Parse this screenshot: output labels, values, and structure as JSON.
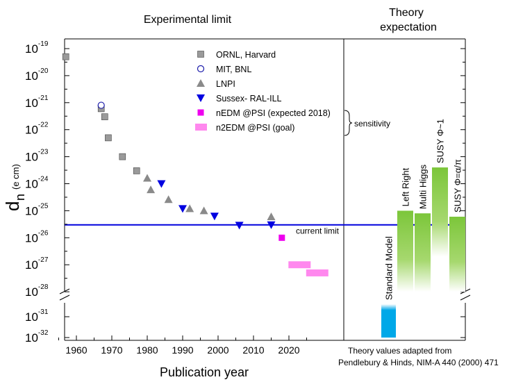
{
  "chart_data": {
    "type": "scatter",
    "title": "",
    "xlabel": "Publication year",
    "ylabel_main": "d",
    "ylabel_sub": "n",
    "ylabel_unit": "(e cm)",
    "xlim": [
      1950,
      2025
    ],
    "x_ticks": [
      "1960",
      "1970",
      "1980",
      "1990",
      "2000",
      "2010",
      "2020"
    ],
    "y_scale": "log (broken axis)",
    "y_ticks_upper": [
      {
        "base": "10",
        "exp": "-19"
      },
      {
        "base": "10",
        "exp": "-20"
      },
      {
        "base": "10",
        "exp": "-21"
      },
      {
        "base": "10",
        "exp": "-22"
      },
      {
        "base": "10",
        "exp": "-23"
      },
      {
        "base": "10",
        "exp": "-24"
      },
      {
        "base": "10",
        "exp": "-25"
      },
      {
        "base": "10",
        "exp": "-26"
      },
      {
        "base": "10",
        "exp": "-27"
      },
      {
        "base": "10",
        "exp": "-28"
      }
    ],
    "y_ticks_lower": [
      {
        "base": "10",
        "exp": "-31"
      },
      {
        "base": "10",
        "exp": "-32"
      }
    ],
    "panel_titles": {
      "left": "Experimental limit",
      "right_line1": "Theory",
      "right_line2": "expectation"
    },
    "series": [
      {
        "name": "ORNL, Harvard",
        "marker": "square",
        "color": "#9a9a9a",
        "points": [
          [
            1957,
            5e-20
          ],
          [
            1967,
            6e-22
          ],
          [
            1968,
            3e-22
          ],
          [
            1969,
            5e-23
          ],
          [
            1973,
            1e-23
          ],
          [
            1977,
            3e-24
          ]
        ]
      },
      {
        "name": "MIT, BNL",
        "marker": "open-circle",
        "color": "#1a1aaa",
        "points": [
          [
            1967,
            8e-22
          ]
        ]
      },
      {
        "name": "LNPI",
        "marker": "triangle-up",
        "color": "#8a8a8a",
        "points": [
          [
            1980,
            1.6e-24
          ],
          [
            1981,
            6e-25
          ],
          [
            1986,
            2.6e-25
          ],
          [
            1992,
            1.2e-25
          ],
          [
            1996,
            1e-25
          ],
          [
            2015,
            6e-26
          ]
        ]
      },
      {
        "name": "Sussex- RAL-ILL",
        "marker": "triangle-down",
        "color": "#0000e0",
        "points": [
          [
            1984,
            1e-24
          ],
          [
            1990,
            1.2e-25
          ],
          [
            1999,
            6.3e-26
          ],
          [
            2006,
            2.9e-26
          ],
          [
            2015,
            3e-26
          ]
        ]
      },
      {
        "name": "nEDM @PSI (expected 2018)",
        "marker": "square",
        "color": "#ee00ee",
        "points": [
          [
            2018,
            1e-26
          ]
        ]
      },
      {
        "name": "n2EDM @PSI (goal)",
        "marker": "wide-bar",
        "color": "#ff88ee",
        "points": [
          [
            2023,
            1e-27
          ],
          [
            2028,
            5e-28
          ]
        ]
      }
    ],
    "current_limit": {
      "value": 3e-26,
      "label": "current limit",
      "color": "#0000dd"
    },
    "bracket_label": "sensitivity",
    "theory": {
      "bars": [
        {
          "label": "Standard Model",
          "color": "#00a8e8",
          "top": 4e-31,
          "bottom": 1e-32
        },
        {
          "label": "Left Right",
          "color": "#88cc44",
          "top": 1e-25,
          "bottom": 1e-28
        },
        {
          "label": "Multi Higgs",
          "color": "#88cc44",
          "top": 8e-26,
          "bottom": 1e-28
        },
        {
          "label": "SUSY Φ~1",
          "color": "#88cc44",
          "top": 4e-24,
          "bottom": 2e-27
        },
        {
          "label": "SUSY Φ=α/π",
          "color": "#88cc44",
          "top": 6e-26,
          "bottom": 1e-28
        }
      ],
      "note_line1": "Theory values adapted from",
      "note_line2": "Pendlebury & Hinds, NIM-A 440 (2000) 471"
    }
  }
}
